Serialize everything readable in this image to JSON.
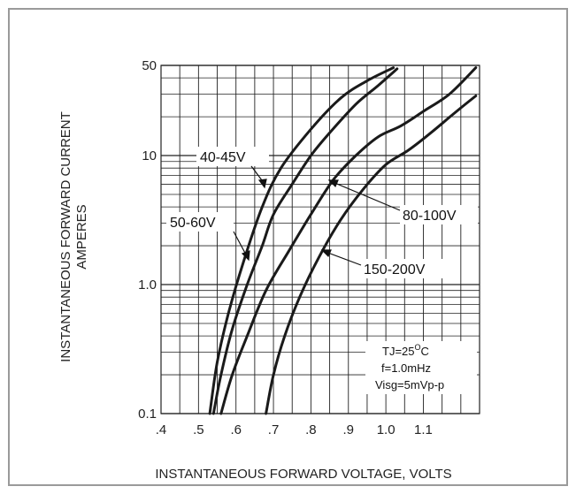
{
  "chart_data": {
    "type": "line",
    "xlabel": "INSTANTANEOUS FORWARD VOLTAGE, VOLTS",
    "ylabel_line1": "INSTANTANEOUS FORWARD CURRENT",
    "ylabel_line2": "AMPERES",
    "x_scale": "linear",
    "y_scale": "log",
    "xlim": [
      0.4,
      1.25
    ],
    "ylim": [
      0.1,
      50
    ],
    "x_ticks": [
      0.4,
      0.5,
      0.6,
      0.7,
      0.8,
      0.9,
      1.0,
      1.1
    ],
    "x_tick_labels": [
      ".4",
      ".5",
      ".6",
      ".7",
      ".8",
      ".9",
      "1.0",
      "1.1"
    ],
    "y_ticks": [
      0.1,
      1.0,
      10,
      50
    ],
    "y_tick_labels": [
      "0.1",
      "1.0",
      "10",
      "50"
    ],
    "grid": true,
    "series": [
      {
        "name": "40-45V",
        "x": [
          0.53,
          0.55,
          0.58,
          0.62,
          0.67,
          0.72,
          0.8,
          0.88,
          0.95,
          1.02
        ],
        "y": [
          0.1,
          0.25,
          0.6,
          1.5,
          4.0,
          8.0,
          16,
          28,
          38,
          48
        ]
      },
      {
        "name": "50-60V",
        "x": [
          0.54,
          0.56,
          0.59,
          0.63,
          0.67,
          0.7,
          0.75,
          0.8,
          0.85,
          0.92,
          0.98,
          1.03
        ],
        "y": [
          0.1,
          0.2,
          0.45,
          1.0,
          2.0,
          3.5,
          6.0,
          10,
          15,
          25,
          35,
          47
        ]
      },
      {
        "name": "80-100V",
        "x": [
          0.56,
          0.59,
          0.63,
          0.68,
          0.74,
          0.8,
          0.86,
          0.92,
          0.98,
          1.04,
          1.1,
          1.17,
          1.24
        ],
        "y": [
          0.1,
          0.2,
          0.4,
          0.9,
          1.8,
          3.5,
          6.5,
          10,
          14,
          17,
          22,
          30,
          48
        ]
      },
      {
        "name": "150-200V",
        "x": [
          0.68,
          0.7,
          0.73,
          0.77,
          0.82,
          0.88,
          0.94,
          1.0,
          1.06,
          1.12,
          1.18,
          1.24
        ],
        "y": [
          0.1,
          0.2,
          0.4,
          0.8,
          1.6,
          3.2,
          5.5,
          8.5,
          11,
          15,
          21,
          29
        ]
      }
    ],
    "annotations": [
      "TJ=25°C",
      "f=1.0mHz",
      "Visg=5mVp-p"
    ],
    "annotation_parts": {
      "tj_prefix": "TJ=25",
      "tj_degree": "O",
      "tj_suffix": "C"
    },
    "line_color": "#1a1a1a",
    "grid_color": "#222222",
    "border_color": "#9a9a9a"
  }
}
